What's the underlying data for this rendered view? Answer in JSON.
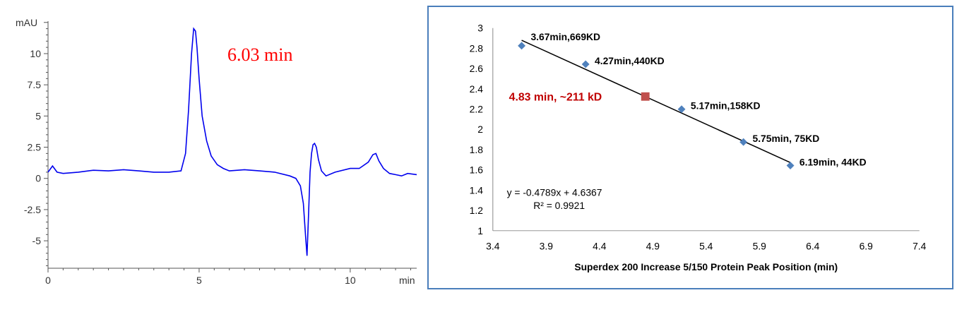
{
  "chart_data": [
    {
      "type": "line",
      "ylabel": "mAU",
      "xlabel": "min",
      "xlim": [
        0,
        12.2
      ],
      "ylim": [
        -7.2,
        12.6
      ],
      "x_ticks": [
        0,
        5,
        10
      ],
      "x_tick_labels": [
        "0",
        "5",
        "10"
      ],
      "y_ticks": [
        10,
        7.5,
        5,
        2.5,
        0,
        -2.5,
        -5
      ],
      "y_tick_labels": [
        "10",
        "7.5",
        "5",
        "2.5",
        "0",
        "-2.5",
        "-5"
      ],
      "annotation": "6.03 min",
      "annotation_color": "#ff0000",
      "line_color": "#0000ee",
      "series": [
        {
          "x": [
            0.0,
            0.15,
            0.3,
            0.5,
            1.0,
            1.5,
            2.0,
            2.5,
            3.0,
            3.5,
            4.0,
            4.4,
            4.55,
            4.65,
            4.75,
            4.82,
            4.88,
            4.93,
            5.0,
            5.1,
            5.25,
            5.4,
            5.6,
            5.8,
            6.0,
            6.5,
            7.0,
            7.5,
            8.0,
            8.2,
            8.35,
            8.45,
            8.52,
            8.57,
            8.62,
            8.67,
            8.72,
            8.77,
            8.82,
            8.88,
            8.95,
            9.05,
            9.2,
            9.5,
            10.0,
            10.3,
            10.6,
            10.75,
            10.85,
            10.95,
            11.1,
            11.3,
            11.5,
            11.7,
            11.9,
            12.2
          ],
          "y": [
            0.5,
            1.0,
            0.5,
            0.4,
            0.5,
            0.65,
            0.6,
            0.7,
            0.6,
            0.5,
            0.5,
            0.6,
            2.0,
            5.5,
            10.0,
            12.0,
            11.8,
            10.5,
            8.0,
            5.0,
            3.0,
            1.8,
            1.1,
            0.8,
            0.6,
            0.7,
            0.6,
            0.5,
            0.2,
            0.0,
            -0.6,
            -2.0,
            -4.5,
            -6.2,
            -3.0,
            0.5,
            2.0,
            2.7,
            2.8,
            2.5,
            1.5,
            0.6,
            0.2,
            0.5,
            0.8,
            0.8,
            1.3,
            1.9,
            2.0,
            1.4,
            0.8,
            0.4,
            0.3,
            0.2,
            0.4,
            0.3
          ]
        }
      ]
    },
    {
      "type": "scatter",
      "title": "",
      "xlabel": "Superdex 200 Increase 5/150  Protein Peak Position (min)",
      "ylabel": "",
      "xlim": [
        3.4,
        7.4
      ],
      "ylim": [
        1,
        3
      ],
      "x_ticks": [
        3.4,
        3.9,
        4.4,
        4.9,
        5.4,
        5.9,
        6.4,
        6.9,
        7.4
      ],
      "x_tick_labels": [
        "3.4",
        "3.9",
        "4.4",
        "4.9",
        "5.4",
        "5.9",
        "6.4",
        "6.9",
        "7.4"
      ],
      "y_ticks": [
        1,
        1.2,
        1.4,
        1.6,
        1.8,
        2,
        2.2,
        2.4,
        2.6,
        2.8,
        3
      ],
      "y_tick_labels": [
        "1",
        "1.2",
        "1.4",
        "1.6",
        "1.8",
        "2",
        "2.2",
        "2.4",
        "2.6",
        "2.8",
        "3"
      ],
      "grid": false,
      "series": [
        {
          "color": "#4f81bd",
          "marker": "diamond",
          "x": [
            3.67,
            4.27,
            5.17,
            5.75,
            6.19
          ],
          "y": [
            2.825,
            2.643,
            2.199,
            1.875,
            1.643
          ],
          "labels": [
            "3.67min,669KD",
            "4.27min,440KD",
            "5.17min,158KD",
            "5.75min, 75KD",
            "6.19min, 44KD"
          ]
        },
        {
          "color": "#c0504d",
          "marker": "square",
          "x": [
            4.83
          ],
          "y": [
            2.324
          ],
          "labels": [
            "4.83 min, ~211 kD"
          ],
          "label_color": "#c00000"
        }
      ],
      "trendline": {
        "slope": -0.4789,
        "intercept": 4.6367,
        "x_range": [
          3.67,
          6.19
        ],
        "color": "#000000"
      },
      "equation": "y = -0.4789x + 4.6367",
      "r_squared": "R² = 0.9921"
    }
  ]
}
